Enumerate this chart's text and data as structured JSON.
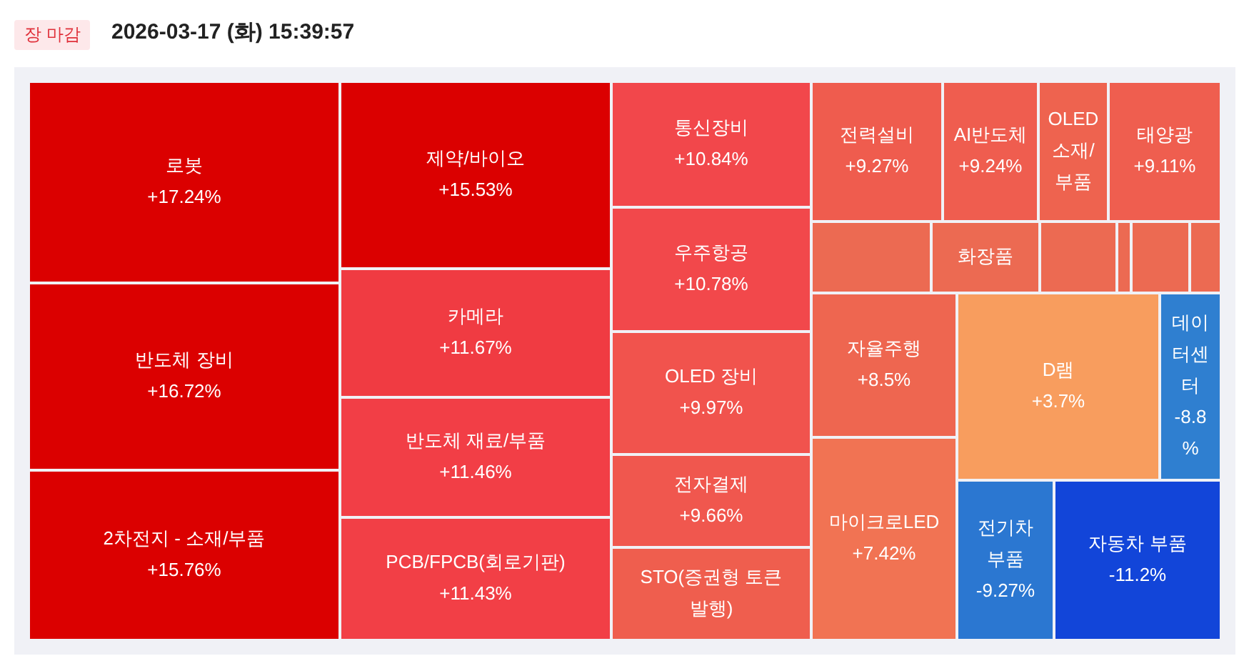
{
  "chart_data": {
    "type": "other",
    "title": "2026-03-17 (화) 15:39:57",
    "subtitle": "장 마감",
    "categories": [
      "로봇",
      "반도체 장비",
      "2차전지 - 소재/부품",
      "제약/바이오",
      "카메라",
      "반도체 재료/부품",
      "PCB/FPCB(회로기판)",
      "통신장비",
      "우주항공",
      "OLED 장비",
      "전자결제",
      "STO(증권형 토큰 발행)",
      "전력설비",
      "AI반도체",
      "OLED 소재/부품",
      "태양광",
      null,
      "화장품",
      null,
      null,
      null,
      null,
      "자율주행",
      "마이크로LED",
      "D램",
      "데이터센터",
      "전기차 부품",
      "자동차 부품"
    ],
    "values": [
      17.24,
      16.72,
      15.76,
      15.53,
      11.67,
      11.46,
      11.43,
      10.84,
      10.78,
      9.97,
      9.66,
      null,
      9.27,
      9.24,
      null,
      9.11,
      null,
      null,
      null,
      null,
      null,
      null,
      8.5,
      7.42,
      3.7,
      -8.8,
      -9.27,
      -11.2
    ],
    "value_labels": [
      "+17.24%",
      "+16.72%",
      "+15.76%",
      "+15.53%",
      "+11.67%",
      "+11.46%",
      "+11.43%",
      "+10.84%",
      "+10.78%",
      "+9.97%",
      "+9.66%",
      null,
      "+9.27%",
      "+9.24%",
      null,
      "+9.11%",
      null,
      null,
      null,
      null,
      null,
      null,
      "+8.5%",
      "+7.42%",
      "+3.7%",
      "-8.8%",
      "-9.27%",
      "-11.2%"
    ],
    "colors": [
      null,
      null,
      null,
      null,
      null,
      null,
      null,
      null,
      null,
      null,
      null,
      "#ef5e4e",
      null,
      null,
      "#ee634f",
      null,
      "#ec6a52",
      "#ec6a52",
      "#ec6a52",
      "#ec6a52",
      "#ec6a52",
      "#ec6a52",
      null,
      null,
      null,
      null,
      null,
      null
    ]
  }
}
